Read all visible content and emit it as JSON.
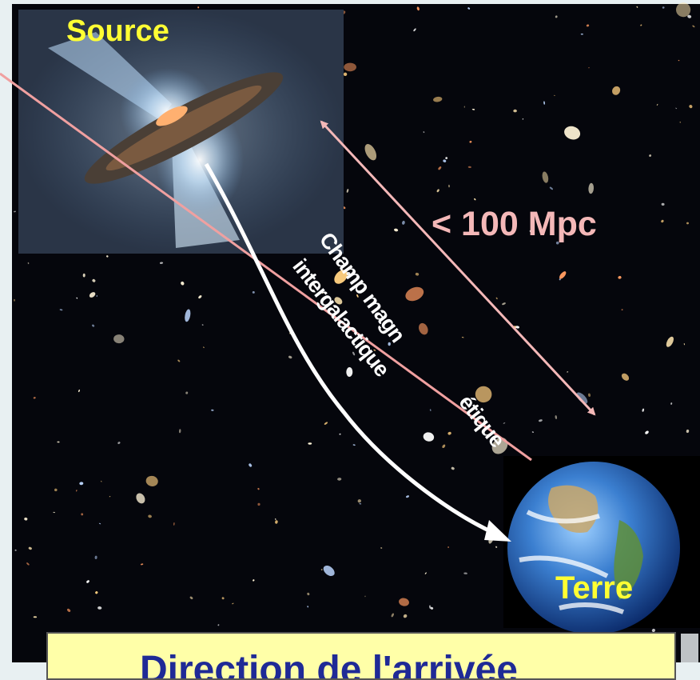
{
  "labels": {
    "source": "Source",
    "distance": "< 100 Mpc",
    "earth": "Terre",
    "field_line1_part1": "Champ magn",
    "field_line1_part2": "étique",
    "field_line2": "intergalactique"
  },
  "caption": {
    "text": "Direction de l'arrivée"
  },
  "colors": {
    "label_yellow": "#ffff33",
    "distance_pink": "#f4b8b8",
    "arrow_white": "#ffffff",
    "line_of_sight": "#f0a0a0",
    "caption_bg": "#ffffa8",
    "caption_text": "#1f2a96"
  },
  "icons": {
    "source_image": "agn-disk-with-jets",
    "earth_image": "earth-globe",
    "background": "deep-field-galaxies"
  }
}
